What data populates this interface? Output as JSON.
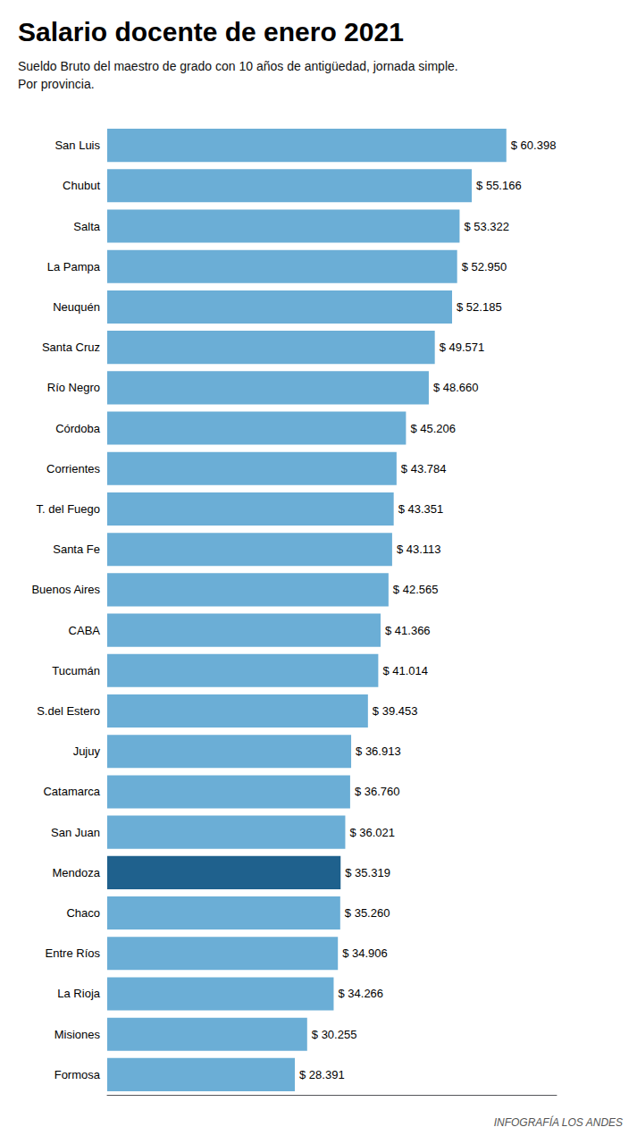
{
  "chart_data": {
    "type": "bar",
    "orientation": "horizontal",
    "title": "Salario docente de enero 2021",
    "subtitle": "Sueldo Bruto del maestro de grado con 10 años de antigüedad, jornada simple.\nPor provincia.",
    "annotations": [
      "INFOGRAFÍA LOS ANDES"
    ],
    "categories": [
      "San Luis",
      "Chubut",
      "Salta",
      "La Pampa",
      "Neuquén",
      "Santa Cruz",
      "Río Negro",
      "Córdoba",
      "Corrientes",
      "T. del Fuego",
      "Santa Fe",
      "Buenos Aires",
      "CABA",
      "Tucumán",
      "S.del Estero",
      "Jujuy",
      "Catamarca",
      "San Juan",
      "Mendoza",
      "Chaco",
      "Entre Ríos",
      "La Rioja",
      "Misiones",
      "Formosa"
    ],
    "values": [
      60398,
      55166,
      53322,
      52950,
      52185,
      49571,
      48660,
      45206,
      43784,
      43351,
      43113,
      42565,
      41366,
      41014,
      39453,
      36913,
      36760,
      36021,
      35319,
      35260,
      34906,
      34266,
      30255,
      28391
    ],
    "value_labels": [
      "$ 60.398",
      "$ 55.166",
      "$ 53.322",
      "$ 52.950",
      "$ 52.185",
      "$ 49.571",
      "$ 48.660",
      "$ 45.206",
      "$ 43.784",
      "$ 43.351",
      "$ 43.113",
      "$ 42.565",
      "$ 41.366",
      "$ 41.014",
      "$ 39.453",
      "$ 36.913",
      "$ 36.760",
      "$ 36.021",
      "$ 35.319",
      "$ 35.260",
      "$ 34.906",
      "$ 34.266",
      "$ 30.255",
      "$ 28.391"
    ],
    "colors": [
      "#6baed6",
      "#6baed6",
      "#6baed6",
      "#6baed6",
      "#6baed6",
      "#6baed6",
      "#6baed6",
      "#6baed6",
      "#6baed6",
      "#6baed6",
      "#6baed6",
      "#6baed6",
      "#6baed6",
      "#6baed6",
      "#6baed6",
      "#6baed6",
      "#6baed6",
      "#6baed6",
      "#1f618d",
      "#6baed6",
      "#6baed6",
      "#6baed6",
      "#6baed6",
      "#6baed6"
    ],
    "xlim": [
      0,
      68000
    ],
    "tick_labels": "y",
    "data_labels": true,
    "grid": false
  }
}
